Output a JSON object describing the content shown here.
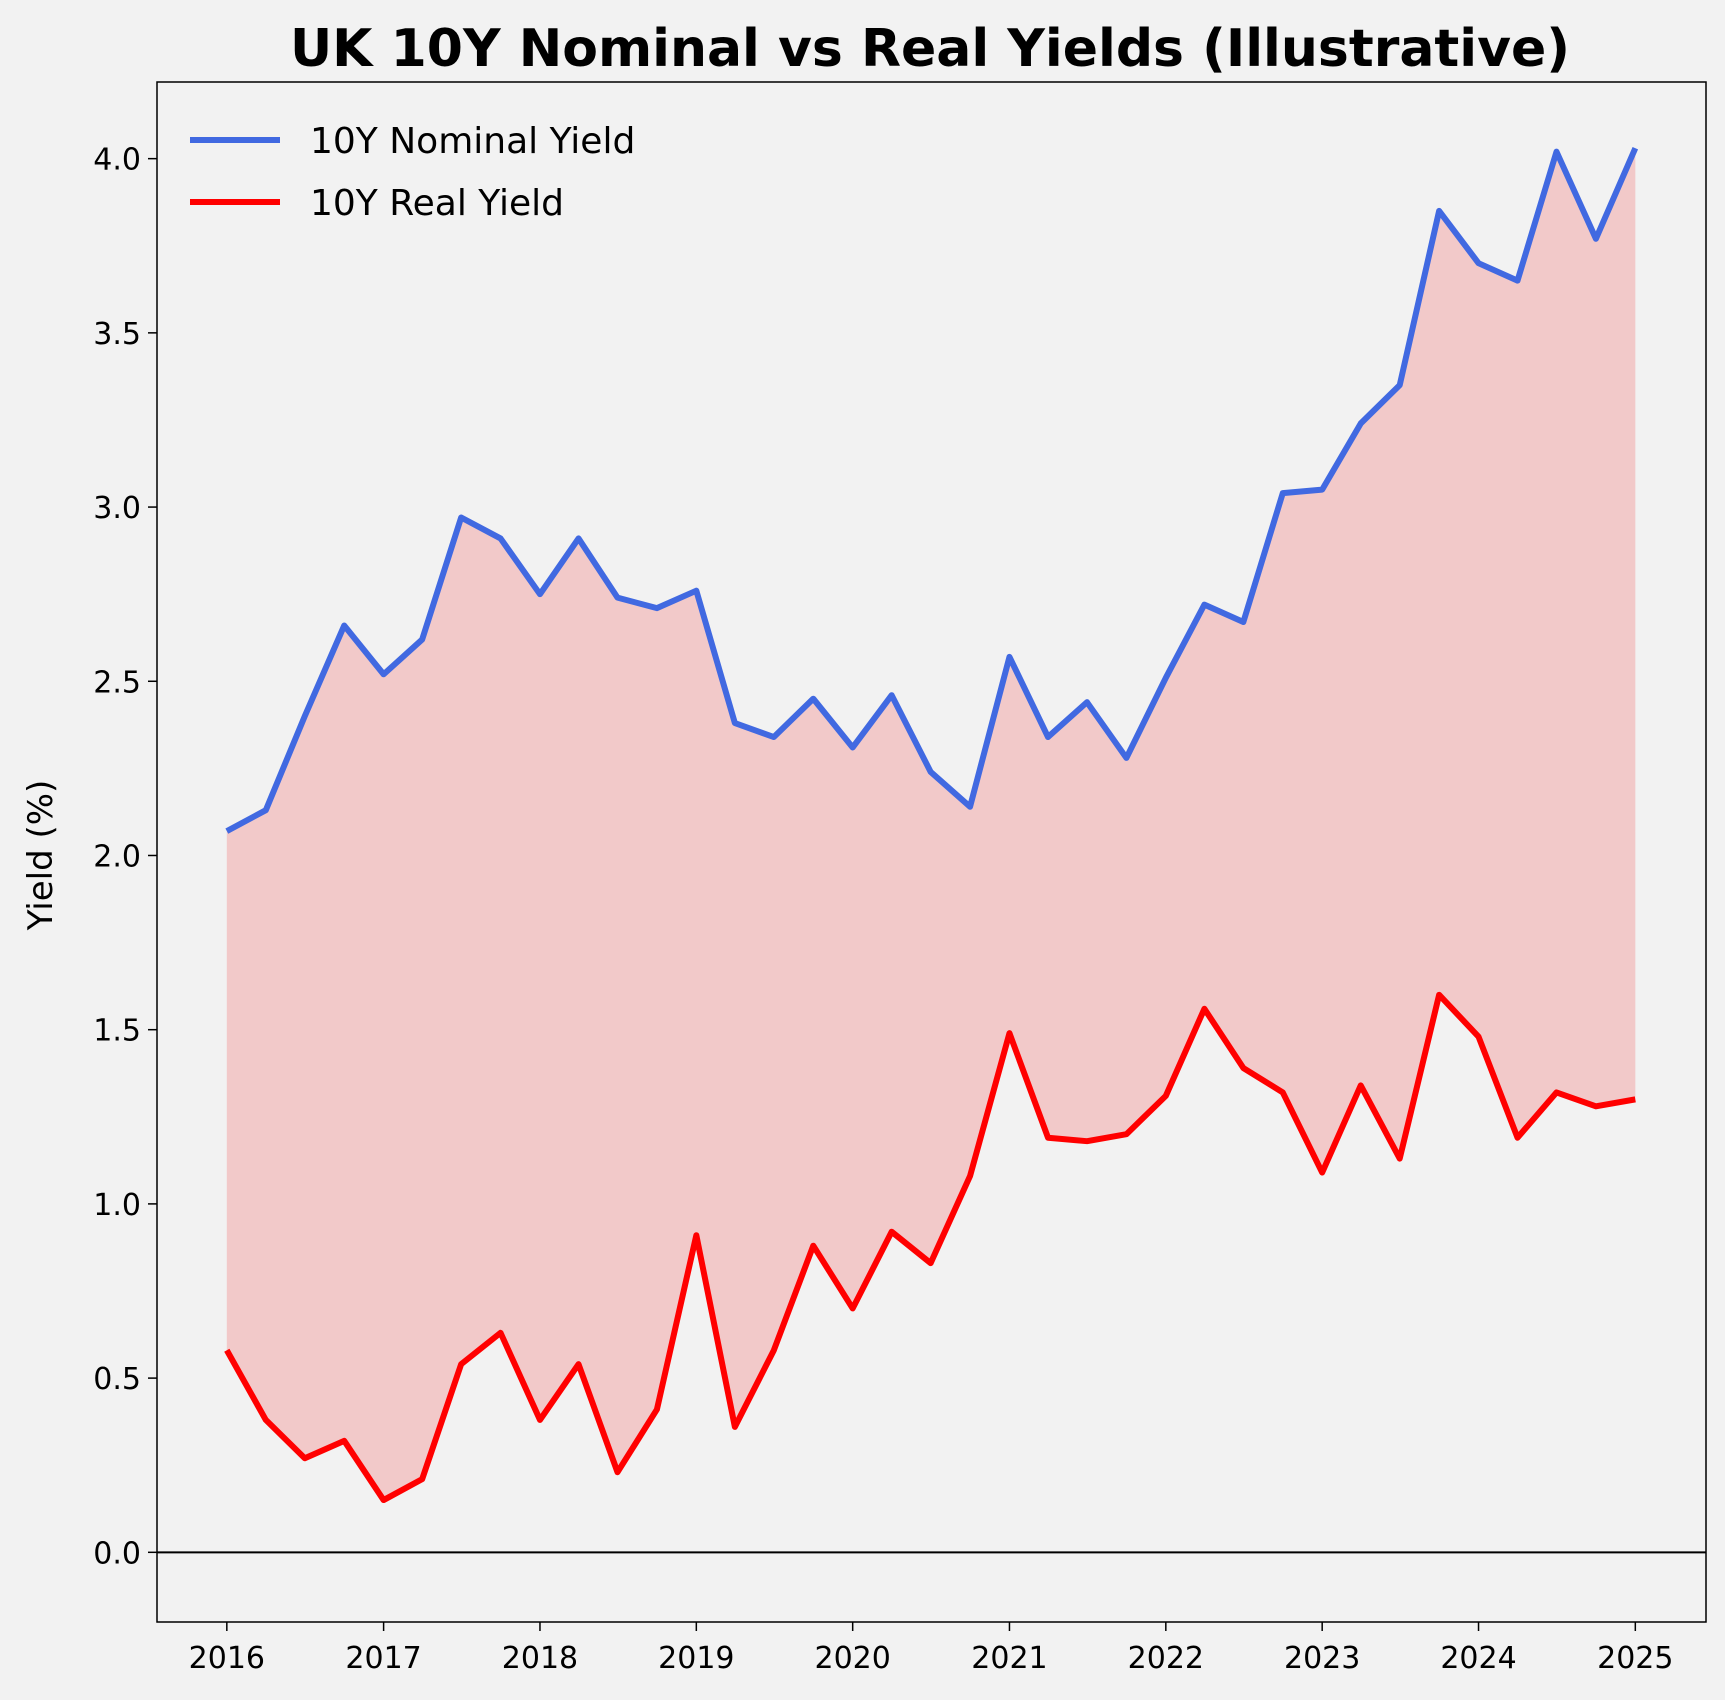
{
  "chart_data": {
    "type": "line",
    "title": "UK 10Y Nominal vs Real Yields (Illustrative)",
    "xlabel": "",
    "ylabel": "Yield (%)",
    "ylim": [
      -0.2,
      4.22
    ],
    "yticks": [
      0.0,
      0.5,
      1.0,
      1.5,
      2.0,
      2.5,
      3.0,
      3.5,
      4.0
    ],
    "xticks": [
      "2016",
      "2017",
      "2018",
      "2019",
      "2020",
      "2021",
      "2022",
      "2023",
      "2024",
      "2025"
    ],
    "xlim": [
      "2015-07-22",
      "2025-06-15"
    ],
    "grid": false,
    "legend_position": "top-left",
    "zero_line": true,
    "fill_between": {
      "color": "#f2c9c9"
    },
    "x": [
      "2016-01-01",
      "2016-04-01",
      "2016-07-01",
      "2016-10-01",
      "2017-01-01",
      "2017-04-01",
      "2017-07-01",
      "2017-10-01",
      "2018-01-01",
      "2018-04-01",
      "2018-07-01",
      "2018-10-01",
      "2019-01-01",
      "2019-04-01",
      "2019-07-01",
      "2019-10-01",
      "2020-01-01",
      "2020-04-01",
      "2020-07-01",
      "2020-10-01",
      "2021-01-01",
      "2021-04-01",
      "2021-07-01",
      "2021-10-01",
      "2022-01-01",
      "2022-04-01",
      "2022-07-01",
      "2022-10-01",
      "2023-01-01",
      "2023-04-01",
      "2023-07-01",
      "2023-10-01",
      "2024-01-01",
      "2024-04-01",
      "2024-07-01",
      "2024-10-01",
      "2025-01-01"
    ],
    "series": [
      {
        "name": "10Y Nominal Yield",
        "color": "#4169e1",
        "values": [
          2.07,
          2.13,
          2.4,
          2.66,
          2.52,
          2.62,
          2.97,
          2.91,
          2.75,
          2.91,
          2.74,
          2.71,
          2.76,
          2.38,
          2.34,
          2.45,
          2.31,
          2.46,
          2.24,
          2.14,
          2.57,
          2.34,
          2.44,
          2.28,
          2.51,
          2.72,
          2.67,
          3.04,
          3.05,
          3.24,
          3.35,
          3.85,
          3.7,
          3.65,
          4.02,
          3.77,
          4.03
        ]
      },
      {
        "name": "10Y Real Yield",
        "color": "#ff0000",
        "values": [
          0.58,
          0.38,
          0.27,
          0.32,
          0.15,
          0.21,
          0.54,
          0.63,
          0.38,
          0.54,
          0.23,
          0.41,
          0.91,
          0.36,
          0.58,
          0.88,
          0.7,
          0.92,
          0.83,
          1.08,
          1.49,
          1.19,
          1.18,
          1.2,
          1.31,
          1.56,
          1.39,
          1.32,
          1.09,
          1.34,
          1.13,
          1.6,
          1.48,
          1.19,
          1.32,
          1.28,
          1.3
        ]
      }
    ]
  }
}
